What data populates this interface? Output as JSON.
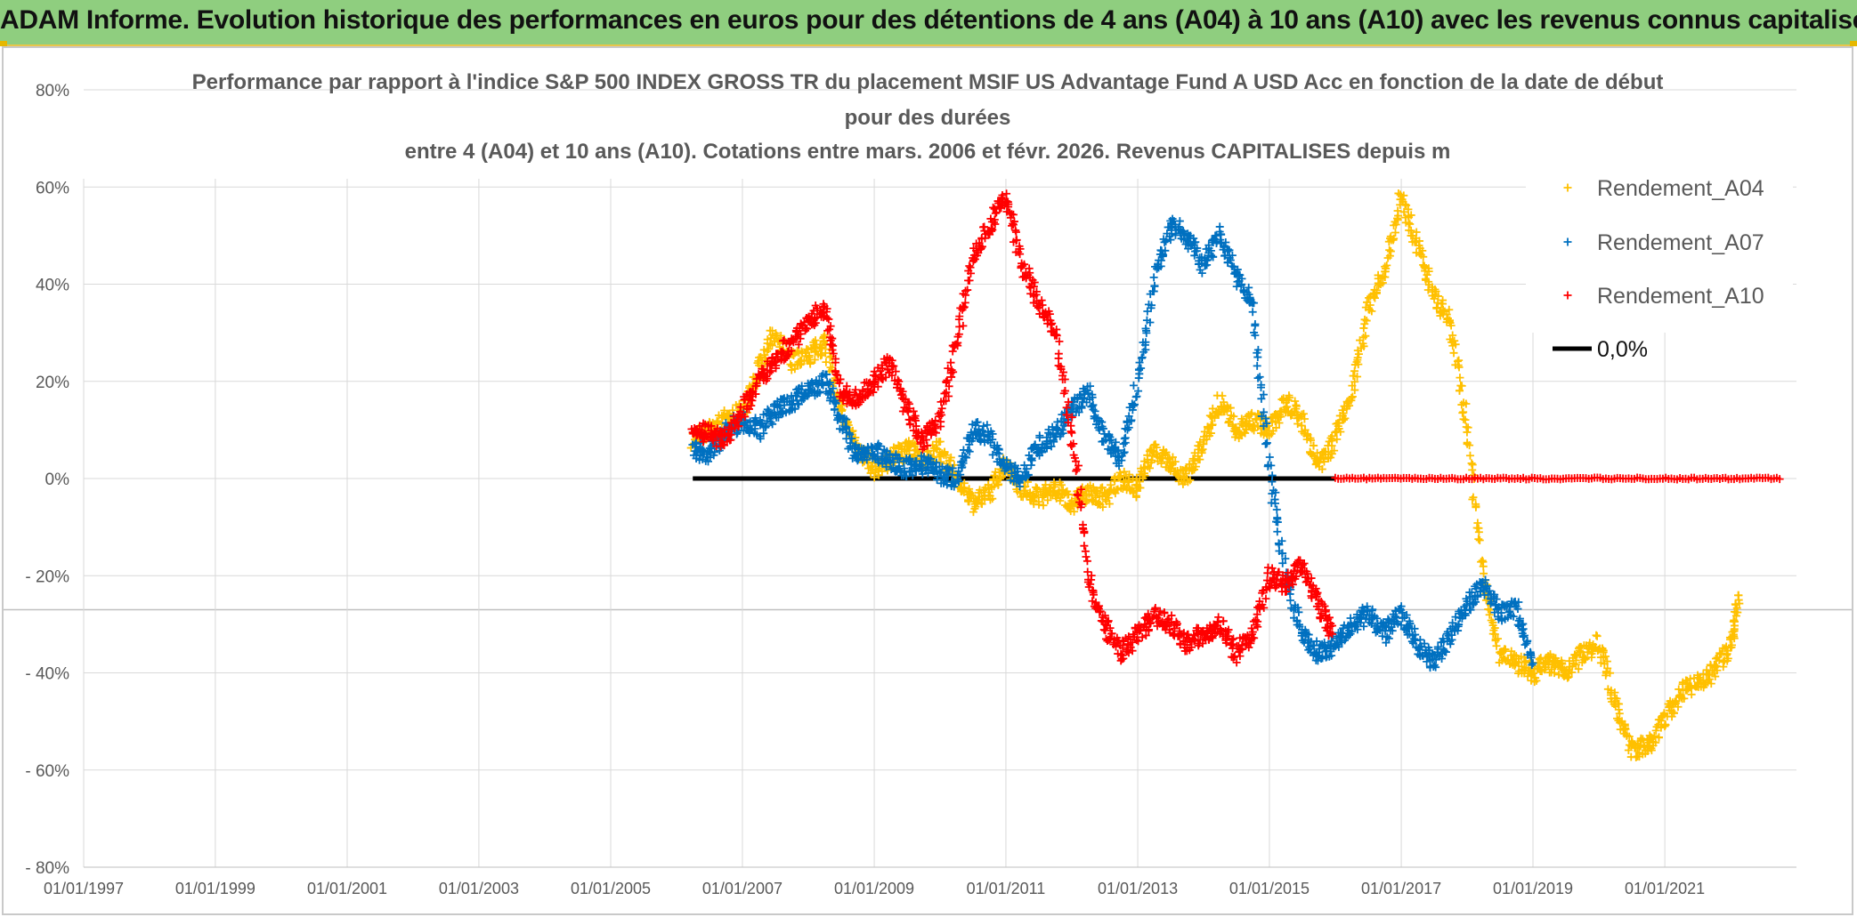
{
  "banner": {
    "title": "ADAM Informe. Evolution historique des performances en euros pour des détentions de 4 ans (A04) à 10 ans (A10) avec les revenus connus capitalisés"
  },
  "chart_data": {
    "type": "scatter",
    "title_lines": [
      "Performance par rapport à l'indice S&P 500 INDEX GROSS TR  du placement MSIF US Advantage Fund A USD Acc en fonction de la date de début",
      "pour des durées",
      "entre 4 (A04) et 10 ans (A10). Cotations entre mars. 2006 et févr. 2026. Revenus CAPITALISES depuis m"
    ],
    "ylim": [
      -0.8,
      0.8
    ],
    "y_ticks": [
      {
        "value": 0.8,
        "label": "80%"
      },
      {
        "value": 0.6,
        "label": "60%"
      },
      {
        "value": 0.4,
        "label": "40%"
      },
      {
        "value": 0.2,
        "label": "20%"
      },
      {
        "value": 0.0,
        "label": "0%"
      },
      {
        "value": -0.2,
        "label": "- 20%"
      },
      {
        "value": -0.4,
        "label": "- 40%"
      },
      {
        "value": -0.6,
        "label": "- 60%"
      },
      {
        "value": -0.8,
        "label": "- 80%"
      }
    ],
    "xlim": [
      "1997-01-01",
      "2023-01-01"
    ],
    "x_ticks": [
      "01/01/1997",
      "01/01/1999",
      "01/01/2001",
      "01/01/2003",
      "01/01/2005",
      "01/01/2007",
      "01/01/2009",
      "01/01/2011",
      "01/01/2013",
      "01/01/2015",
      "01/01/2017",
      "01/01/2019",
      "01/01/2021"
    ],
    "grid": true,
    "legend_position": "top-right",
    "series": [
      {
        "name": "Rendement_A04",
        "color": "#ffc000",
        "marker": "plus",
        "points": [
          [
            "2006-04-01",
            0.08
          ],
          [
            "2006-07-01",
            0.1
          ],
          [
            "2006-10-01",
            0.12
          ],
          [
            "2007-01-01",
            0.14
          ],
          [
            "2007-04-01",
            0.22
          ],
          [
            "2007-07-01",
            0.3
          ],
          [
            "2007-10-01",
            0.24
          ],
          [
            "2008-01-01",
            0.25
          ],
          [
            "2008-04-01",
            0.28
          ],
          [
            "2008-07-01",
            0.14
          ],
          [
            "2008-10-01",
            0.06
          ],
          [
            "2009-01-01",
            0.02
          ],
          [
            "2009-04-01",
            0.04
          ],
          [
            "2009-07-01",
            0.06
          ],
          [
            "2009-10-01",
            0.04
          ],
          [
            "2010-01-01",
            0.06
          ],
          [
            "2010-04-01",
            0.0
          ],
          [
            "2010-07-01",
            -0.05
          ],
          [
            "2010-10-01",
            -0.03
          ],
          [
            "2011-01-01",
            0.03
          ],
          [
            "2011-04-01",
            -0.02
          ],
          [
            "2011-07-01",
            -0.04
          ],
          [
            "2011-10-01",
            -0.02
          ],
          [
            "2012-01-01",
            -0.05
          ],
          [
            "2012-04-01",
            -0.03
          ],
          [
            "2012-07-01",
            -0.04
          ],
          [
            "2012-10-01",
            0.0
          ],
          [
            "2013-01-01",
            -0.02
          ],
          [
            "2013-04-01",
            0.06
          ],
          [
            "2013-07-01",
            0.03
          ],
          [
            "2013-10-01",
            0.0
          ],
          [
            "2014-01-01",
            0.08
          ],
          [
            "2014-04-01",
            0.16
          ],
          [
            "2014-07-01",
            0.1
          ],
          [
            "2014-10-01",
            0.12
          ],
          [
            "2015-01-01",
            0.1
          ],
          [
            "2015-04-01",
            0.16
          ],
          [
            "2015-07-01",
            0.12
          ],
          [
            "2015-10-01",
            0.02
          ],
          [
            "2016-01-01",
            0.08
          ],
          [
            "2016-04-01",
            0.18
          ],
          [
            "2016-07-01",
            0.35
          ],
          [
            "2016-10-01",
            0.42
          ],
          [
            "2017-01-01",
            0.58
          ],
          [
            "2017-04-01",
            0.48
          ],
          [
            "2017-07-01",
            0.38
          ],
          [
            "2017-10-01",
            0.32
          ],
          [
            "2018-01-01",
            0.1
          ],
          [
            "2018-04-01",
            -0.2
          ],
          [
            "2018-07-01",
            -0.36
          ],
          [
            "2018-10-01",
            -0.38
          ],
          [
            "2019-01-01",
            -0.4
          ],
          [
            "2019-04-01",
            -0.38
          ],
          [
            "2019-07-01",
            -0.4
          ],
          [
            "2019-10-01",
            -0.36
          ],
          [
            "2020-01-01",
            -0.34
          ],
          [
            "2020-04-01",
            -0.46
          ],
          [
            "2020-07-01",
            -0.56
          ],
          [
            "2020-10-01",
            -0.55
          ],
          [
            "2021-01-01",
            -0.5
          ],
          [
            "2021-04-01",
            -0.44
          ],
          [
            "2021-07-01",
            -0.42
          ],
          [
            "2021-10-01",
            -0.4
          ],
          [
            "2022-01-01",
            -0.34
          ],
          [
            "2022-02-15",
            -0.25
          ]
        ]
      },
      {
        "name": "Rendement_A07",
        "color": "#0070c0",
        "marker": "plus",
        "points": [
          [
            "2006-04-01",
            0.06
          ],
          [
            "2006-07-01",
            0.05
          ],
          [
            "2006-10-01",
            0.1
          ],
          [
            "2007-01-01",
            0.12
          ],
          [
            "2007-04-01",
            0.1
          ],
          [
            "2007-07-01",
            0.14
          ],
          [
            "2007-10-01",
            0.16
          ],
          [
            "2008-01-01",
            0.18
          ],
          [
            "2008-04-01",
            0.2
          ],
          [
            "2008-07-01",
            0.12
          ],
          [
            "2008-10-01",
            0.04
          ],
          [
            "2009-01-01",
            0.06
          ],
          [
            "2009-04-01",
            0.04
          ],
          [
            "2009-07-01",
            0.02
          ],
          [
            "2009-10-01",
            0.03
          ],
          [
            "2010-01-01",
            0.01
          ],
          [
            "2010-04-01",
            0.0
          ],
          [
            "2010-07-01",
            0.1
          ],
          [
            "2010-10-01",
            0.09
          ],
          [
            "2011-01-01",
            0.02
          ],
          [
            "2011-04-01",
            0.0
          ],
          [
            "2011-07-01",
            0.07
          ],
          [
            "2011-10-01",
            0.09
          ],
          [
            "2012-01-01",
            0.14
          ],
          [
            "2012-04-01",
            0.18
          ],
          [
            "2012-07-01",
            0.08
          ],
          [
            "2012-10-01",
            0.04
          ],
          [
            "2013-01-01",
            0.2
          ],
          [
            "2013-04-01",
            0.4
          ],
          [
            "2013-07-01",
            0.52
          ],
          [
            "2013-10-01",
            0.5
          ],
          [
            "2014-01-01",
            0.44
          ],
          [
            "2014-04-01",
            0.5
          ],
          [
            "2014-07-01",
            0.42
          ],
          [
            "2014-10-01",
            0.35
          ],
          [
            "2015-01-01",
            0.02
          ],
          [
            "2015-04-01",
            -0.2
          ],
          [
            "2015-07-01",
            -0.32
          ],
          [
            "2015-10-01",
            -0.36
          ],
          [
            "2016-01-01",
            -0.34
          ],
          [
            "2016-04-01",
            -0.3
          ],
          [
            "2016-07-01",
            -0.28
          ],
          [
            "2016-10-01",
            -0.32
          ],
          [
            "2017-01-01",
            -0.28
          ],
          [
            "2017-04-01",
            -0.34
          ],
          [
            "2017-07-01",
            -0.38
          ],
          [
            "2017-10-01",
            -0.32
          ],
          [
            "2018-01-01",
            -0.26
          ],
          [
            "2018-04-01",
            -0.22
          ],
          [
            "2018-07-01",
            -0.28
          ],
          [
            "2018-10-01",
            -0.26
          ],
          [
            "2019-01-01",
            -0.38
          ]
        ]
      },
      {
        "name": "Rendement_A10",
        "color": "#ff0000",
        "marker": "plus",
        "points": [
          [
            "2006-04-01",
            0.1
          ],
          [
            "2006-07-01",
            0.09
          ],
          [
            "2006-10-01",
            0.08
          ],
          [
            "2007-01-01",
            0.14
          ],
          [
            "2007-04-01",
            0.2
          ],
          [
            "2007-07-01",
            0.24
          ],
          [
            "2007-10-01",
            0.28
          ],
          [
            "2008-01-01",
            0.32
          ],
          [
            "2008-04-01",
            0.35
          ],
          [
            "2008-07-01",
            0.18
          ],
          [
            "2008-10-01",
            0.16
          ],
          [
            "2009-01-01",
            0.2
          ],
          [
            "2009-04-01",
            0.24
          ],
          [
            "2009-07-01",
            0.14
          ],
          [
            "2009-10-01",
            0.08
          ],
          [
            "2010-01-01",
            0.12
          ],
          [
            "2010-04-01",
            0.28
          ],
          [
            "2010-07-01",
            0.45
          ],
          [
            "2010-10-01",
            0.52
          ],
          [
            "2011-01-01",
            0.58
          ],
          [
            "2011-04-01",
            0.44
          ],
          [
            "2011-07-01",
            0.36
          ],
          [
            "2011-10-01",
            0.3
          ],
          [
            "2012-01-01",
            0.1
          ],
          [
            "2012-04-01",
            -0.2
          ],
          [
            "2012-07-01",
            -0.3
          ],
          [
            "2012-10-01",
            -0.36
          ],
          [
            "2013-01-01",
            -0.32
          ],
          [
            "2013-04-01",
            -0.28
          ],
          [
            "2013-07-01",
            -0.3
          ],
          [
            "2013-10-01",
            -0.34
          ],
          [
            "2014-01-01",
            -0.32
          ],
          [
            "2014-04-01",
            -0.3
          ],
          [
            "2014-07-01",
            -0.36
          ],
          [
            "2014-10-01",
            -0.32
          ],
          [
            "2015-01-01",
            -0.2
          ],
          [
            "2015-04-01",
            -0.22
          ],
          [
            "2015-07-01",
            -0.18
          ],
          [
            "2015-10-01",
            -0.26
          ],
          [
            "2015-12-15",
            -0.32
          ]
        ],
        "zero_run": [
          "2016-01-01",
          "2022-10-01"
        ]
      },
      {
        "name": "0,0%",
        "color": "#000000",
        "type": "line",
        "points": [
          [
            "2006-04-01",
            0.0
          ],
          [
            "2016-01-01",
            0.0
          ]
        ]
      }
    ]
  }
}
